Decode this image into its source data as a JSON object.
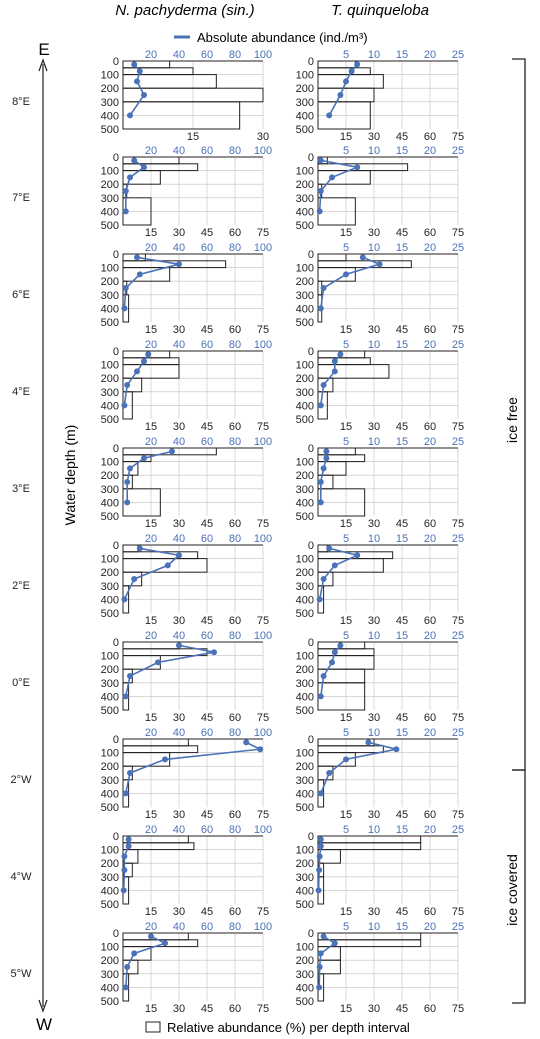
{
  "figure": {
    "species_titles": [
      "N. pachyderma (sin.)",
      "T. quinqueloba"
    ],
    "legend_absolute": "Absolute abundance (ind./m³)",
    "legend_relative": "Relative abundance (%) per depth interval",
    "y_axis_label": "Water depth (m)",
    "direction_top": "E",
    "direction_bottom": "W",
    "zone_ice_free": "ice free",
    "zone_ice_covered": "ice covered",
    "colors": {
      "absolute": "#4a72b8",
      "bars": "#231f20",
      "grid": "#bfbfbf"
    }
  },
  "chart_data": {
    "type": "bar",
    "depth_intervals_m": [
      "0-50",
      "50-100",
      "100-200",
      "200-300",
      "300-500"
    ],
    "depth_points_m": [
      25,
      75,
      150,
      250,
      400
    ],
    "ylim": [
      500,
      0
    ],
    "yticks": [
      0,
      100,
      200,
      300,
      400,
      500
    ],
    "panels": [
      {
        "station": "8°E",
        "species": "N. pachyderma (sin.)",
        "rel_max": 30,
        "rel_ticks": [
          15,
          30
        ],
        "abs_max": 100,
        "abs_ticks": [
          20,
          40,
          60,
          80,
          100
        ],
        "relative": [
          10,
          15,
          20,
          30,
          25
        ],
        "absolute": [
          8,
          12,
          10,
          15,
          5
        ]
      },
      {
        "station": "8°E",
        "species": "T. quinqueloba",
        "rel_max": 75,
        "rel_ticks": [
          15,
          30,
          45,
          60,
          75
        ],
        "abs_max": 25,
        "abs_ticks": [
          5,
          10,
          15,
          20,
          25
        ],
        "relative": [
          20,
          28,
          35,
          30,
          28
        ],
        "absolute": [
          7,
          6,
          5,
          4,
          2
        ]
      },
      {
        "station": "7°E",
        "species": "N. pachyderma (sin.)",
        "rel_max": 75,
        "rel_ticks": [
          15,
          30,
          45,
          60,
          75
        ],
        "abs_max": 100,
        "abs_ticks": [
          20,
          40,
          60,
          80,
          100
        ],
        "relative": [
          30,
          40,
          20,
          2,
          15
        ],
        "absolute": [
          8,
          15,
          5,
          2,
          2
        ]
      },
      {
        "station": "7°E",
        "species": "T. quinqueloba",
        "rel_max": 75,
        "rel_ticks": [
          15,
          30,
          45,
          60,
          75
        ],
        "abs_max": 25,
        "abs_ticks": [
          5,
          10,
          15,
          20,
          25
        ],
        "relative": [
          5,
          48,
          28,
          2,
          20
        ],
        "absolute": [
          0.5,
          7,
          2.5,
          0.5,
          0.3
        ]
      },
      {
        "station": "6°E",
        "species": "N. pachyderma (sin.)",
        "rel_max": 75,
        "rel_ticks": [
          15,
          30,
          45,
          60,
          75
        ],
        "abs_max": 100,
        "abs_ticks": [
          20,
          40,
          60,
          80,
          100
        ],
        "relative": [
          12,
          55,
          25,
          2,
          3
        ],
        "absolute": [
          10,
          40,
          12,
          2,
          1
        ]
      },
      {
        "station": "6°E",
        "species": "T. quinqueloba",
        "rel_max": 75,
        "rel_ticks": [
          15,
          30,
          45,
          60,
          75
        ],
        "abs_max": 25,
        "abs_ticks": [
          5,
          10,
          15,
          20,
          25
        ],
        "relative": [
          15,
          50,
          20,
          2,
          2
        ],
        "absolute": [
          8,
          11,
          5,
          1,
          0.5
        ]
      },
      {
        "station": "4°E",
        "species": "N. pachyderma (sin.)",
        "rel_max": 75,
        "rel_ticks": [
          15,
          30,
          45,
          60,
          75
        ],
        "abs_max": 100,
        "abs_ticks": [
          20,
          40,
          60,
          80,
          100
        ],
        "relative": [
          25,
          30,
          30,
          10,
          5
        ],
        "absolute": [
          18,
          15,
          10,
          3,
          1
        ]
      },
      {
        "station": "4°E",
        "species": "T. quinqueloba",
        "rel_max": 75,
        "rel_ticks": [
          15,
          30,
          45,
          60,
          75
        ],
        "abs_max": 25,
        "abs_ticks": [
          5,
          10,
          15,
          20,
          25
        ],
        "relative": [
          25,
          28,
          38,
          8,
          5
        ],
        "absolute": [
          4,
          3,
          3,
          1,
          0.5
        ]
      },
      {
        "station": "3°E",
        "species": "N. pachyderma (sin.)",
        "rel_max": 75,
        "rel_ticks": [
          15,
          30,
          45,
          60,
          75
        ],
        "abs_max": 100,
        "abs_ticks": [
          20,
          40,
          60,
          80,
          100
        ],
        "relative": [
          50,
          15,
          8,
          5,
          20
        ],
        "absolute": [
          35,
          15,
          5,
          3,
          3
        ]
      },
      {
        "station": "3°E",
        "species": "T. quinqueloba",
        "rel_max": 75,
        "rel_ticks": [
          15,
          30,
          45,
          60,
          75
        ],
        "abs_max": 25,
        "abs_ticks": [
          5,
          10,
          15,
          20,
          25
        ],
        "relative": [
          20,
          25,
          15,
          8,
          25
        ],
        "absolute": [
          1.5,
          1.5,
          1,
          0.5,
          0.5
        ]
      },
      {
        "station": "2°E",
        "species": "N. pachyderma (sin.)",
        "rel_max": 75,
        "rel_ticks": [
          15,
          30,
          45,
          60,
          75
        ],
        "abs_max": 100,
        "abs_ticks": [
          20,
          40,
          60,
          80,
          100
        ],
        "relative": [
          8,
          40,
          45,
          10,
          3
        ],
        "absolute": [
          12,
          40,
          32,
          8,
          1
        ]
      },
      {
        "station": "2°E",
        "species": "T. quinqueloba",
        "rel_max": 75,
        "rel_ticks": [
          15,
          30,
          45,
          60,
          75
        ],
        "abs_max": 25,
        "abs_ticks": [
          5,
          10,
          15,
          20,
          25
        ],
        "relative": [
          5,
          40,
          35,
          8,
          3
        ],
        "absolute": [
          2,
          7,
          3,
          1,
          0.3
        ]
      },
      {
        "station": "0°E",
        "species": "N. pachyderma (sin.)",
        "rel_max": 75,
        "rel_ticks": [
          15,
          30,
          45,
          60,
          75
        ],
        "abs_max": 100,
        "abs_ticks": [
          20,
          40,
          60,
          80,
          100
        ],
        "relative": [
          30,
          45,
          20,
          5,
          3
        ],
        "absolute": [
          40,
          65,
          25,
          5,
          2
        ]
      },
      {
        "station": "0°E",
        "species": "T. quinqueloba",
        "rel_max": 75,
        "rel_ticks": [
          15,
          30,
          45,
          60,
          75
        ],
        "abs_max": 25,
        "abs_ticks": [
          5,
          10,
          15,
          20,
          25
        ],
        "relative": [
          25,
          30,
          30,
          25,
          25
        ],
        "absolute": [
          4,
          3,
          2.5,
          1,
          0.5
        ]
      },
      {
        "station": "2°W",
        "species": "N. pachyderma (sin.)",
        "rel_max": 75,
        "rel_ticks": [
          15,
          30,
          45,
          60,
          75
        ],
        "abs_max": 100,
        "abs_ticks": [
          20,
          40,
          60,
          80,
          100
        ],
        "relative": [
          35,
          40,
          25,
          5,
          3
        ],
        "absolute": [
          88,
          98,
          30,
          5,
          2
        ]
      },
      {
        "station": "2°W",
        "species": "T. quinqueloba",
        "rel_max": 75,
        "rel_ticks": [
          15,
          30,
          45,
          60,
          75
        ],
        "abs_max": 25,
        "abs_ticks": [
          5,
          10,
          15,
          20,
          25
        ],
        "relative": [
          30,
          35,
          20,
          8,
          3
        ],
        "absolute": [
          9,
          14,
          5,
          2,
          0.5
        ]
      },
      {
        "station": "4°W",
        "species": "N. pachyderma (sin.)",
        "rel_max": 75,
        "rel_ticks": [
          15,
          30,
          45,
          60,
          75
        ],
        "abs_max": 100,
        "abs_ticks": [
          20,
          40,
          60,
          80,
          100
        ],
        "relative": [
          35,
          38,
          8,
          5,
          3
        ],
        "absolute": [
          4,
          4,
          1,
          1,
          0.5
        ]
      },
      {
        "station": "4°W",
        "species": "T. quinqueloba",
        "rel_max": 75,
        "rel_ticks": [
          15,
          30,
          45,
          60,
          75
        ],
        "abs_max": 25,
        "abs_ticks": [
          5,
          10,
          15,
          20,
          25
        ],
        "relative": [
          55,
          55,
          12,
          3,
          3
        ],
        "absolute": [
          0.5,
          0.5,
          0.3,
          0.2,
          0.1
        ]
      },
      {
        "station": "5°W",
        "species": "N. pachyderma (sin.)",
        "rel_max": 75,
        "rel_ticks": [
          15,
          30,
          45,
          60,
          75
        ],
        "abs_max": 100,
        "abs_ticks": [
          20,
          40,
          60,
          80,
          100
        ],
        "relative": [
          35,
          40,
          15,
          8,
          3
        ],
        "absolute": [
          20,
          30,
          8,
          3,
          2
        ]
      },
      {
        "station": "5°W",
        "species": "T. quinqueloba",
        "rel_max": 75,
        "rel_ticks": [
          15,
          30,
          45,
          60,
          75
        ],
        "abs_max": 25,
        "abs_ticks": [
          5,
          10,
          15,
          20,
          25
        ],
        "relative": [
          55,
          55,
          12,
          12,
          3
        ],
        "absolute": [
          1,
          3,
          0.5,
          0.3,
          0.2
        ]
      }
    ]
  }
}
